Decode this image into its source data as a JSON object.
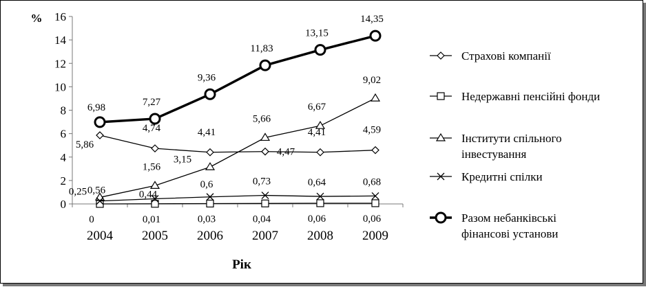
{
  "chart_data": {
    "type": "line",
    "ylabel": "%",
    "xlabel": "Рік",
    "ylim": [
      0,
      16
    ],
    "yticks": [
      0,
      2,
      4,
      6,
      8,
      10,
      12,
      14,
      16
    ],
    "categories": [
      "2004",
      "2005",
      "2006",
      "2007",
      "2008",
      "2009"
    ],
    "series": [
      {
        "name": "Страхові компанії",
        "values": [
          5.86,
          4.74,
          4.41,
          4.47,
          4.41,
          4.59
        ],
        "labels": [
          "5,86",
          "4,74",
          "4,41",
          "4,47",
          "4,41",
          "4,59"
        ],
        "marker": "diamond"
      },
      {
        "name": "Недержавні пенсійні фонди",
        "values": [
          0,
          0.01,
          0.03,
          0.04,
          0.06,
          0.06
        ],
        "labels": [
          "0",
          "0,01",
          "0,03",
          "0,04",
          "0,06",
          "0,06"
        ],
        "marker": "square"
      },
      {
        "name": "Інститути спільного інвестування",
        "values": [
          0.56,
          1.56,
          3.15,
          5.66,
          6.67,
          9.02
        ],
        "labels": [
          "0,56",
          "1,56",
          "3,15",
          "5,66",
          "6,67",
          "9,02"
        ],
        "marker": "triangle"
      },
      {
        "name": "Кредитні спілки",
        "values": [
          0.25,
          0.44,
          0.6,
          0.73,
          0.64,
          0.68
        ],
        "labels": [
          "0,25",
          "0,44",
          "0,6",
          "0,73",
          "0,64",
          "0,68"
        ],
        "marker": "cross"
      },
      {
        "name": "Разом небанківські фінансові установи",
        "values": [
          6.98,
          7.27,
          9.36,
          11.83,
          13.15,
          14.35
        ],
        "labels": [
          "6,98",
          "7,27",
          "9,36",
          "11,83",
          "13,15",
          "14,35"
        ],
        "marker": "circle",
        "bold": true
      }
    ],
    "legend_position": "right",
    "grid": false
  }
}
